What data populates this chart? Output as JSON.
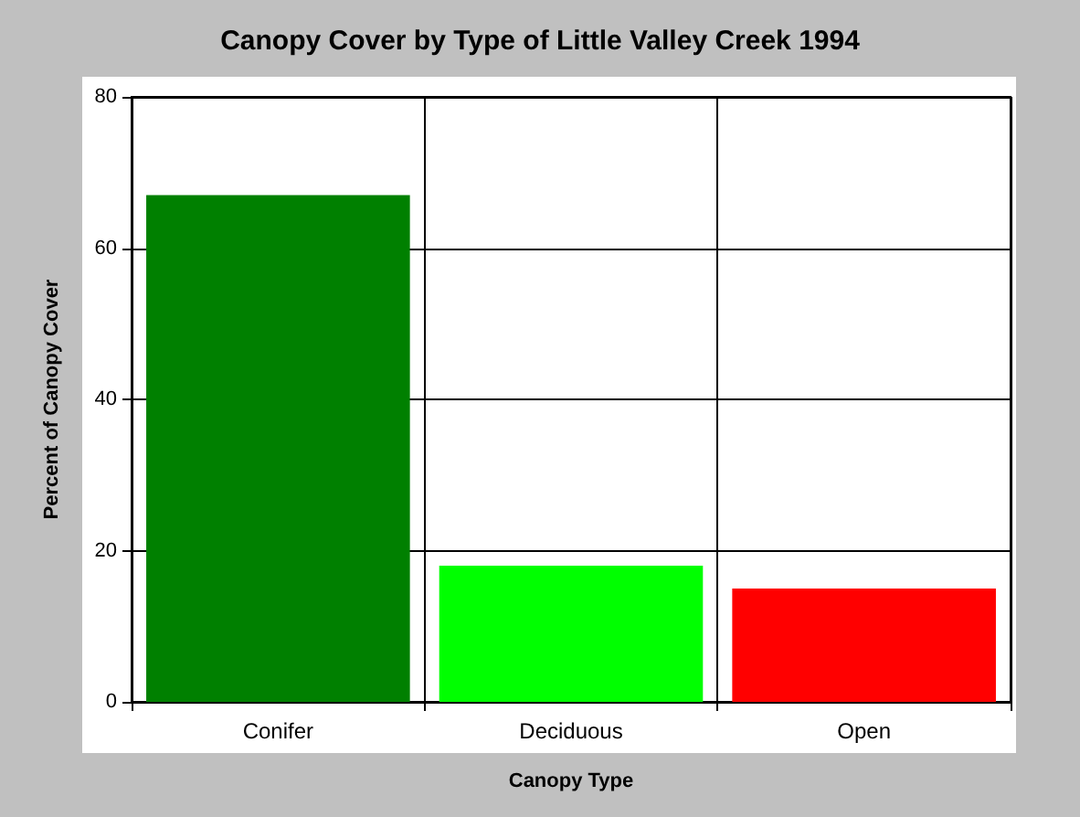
{
  "chart_data": {
    "type": "bar",
    "title": "Canopy Cover by Type of Little Valley Creek 1994",
    "xlabel": "Canopy Type",
    "ylabel": "Percent of Canopy Cover",
    "categories": [
      "Conifer",
      "Deciduous",
      "Open"
    ],
    "values": [
      67,
      18,
      15
    ],
    "colors": [
      "#008000",
      "#00ff00",
      "#ff0000"
    ],
    "ylim": [
      0,
      80
    ],
    "yticks": [
      0,
      20,
      40,
      60,
      80
    ],
    "grid": true
  }
}
